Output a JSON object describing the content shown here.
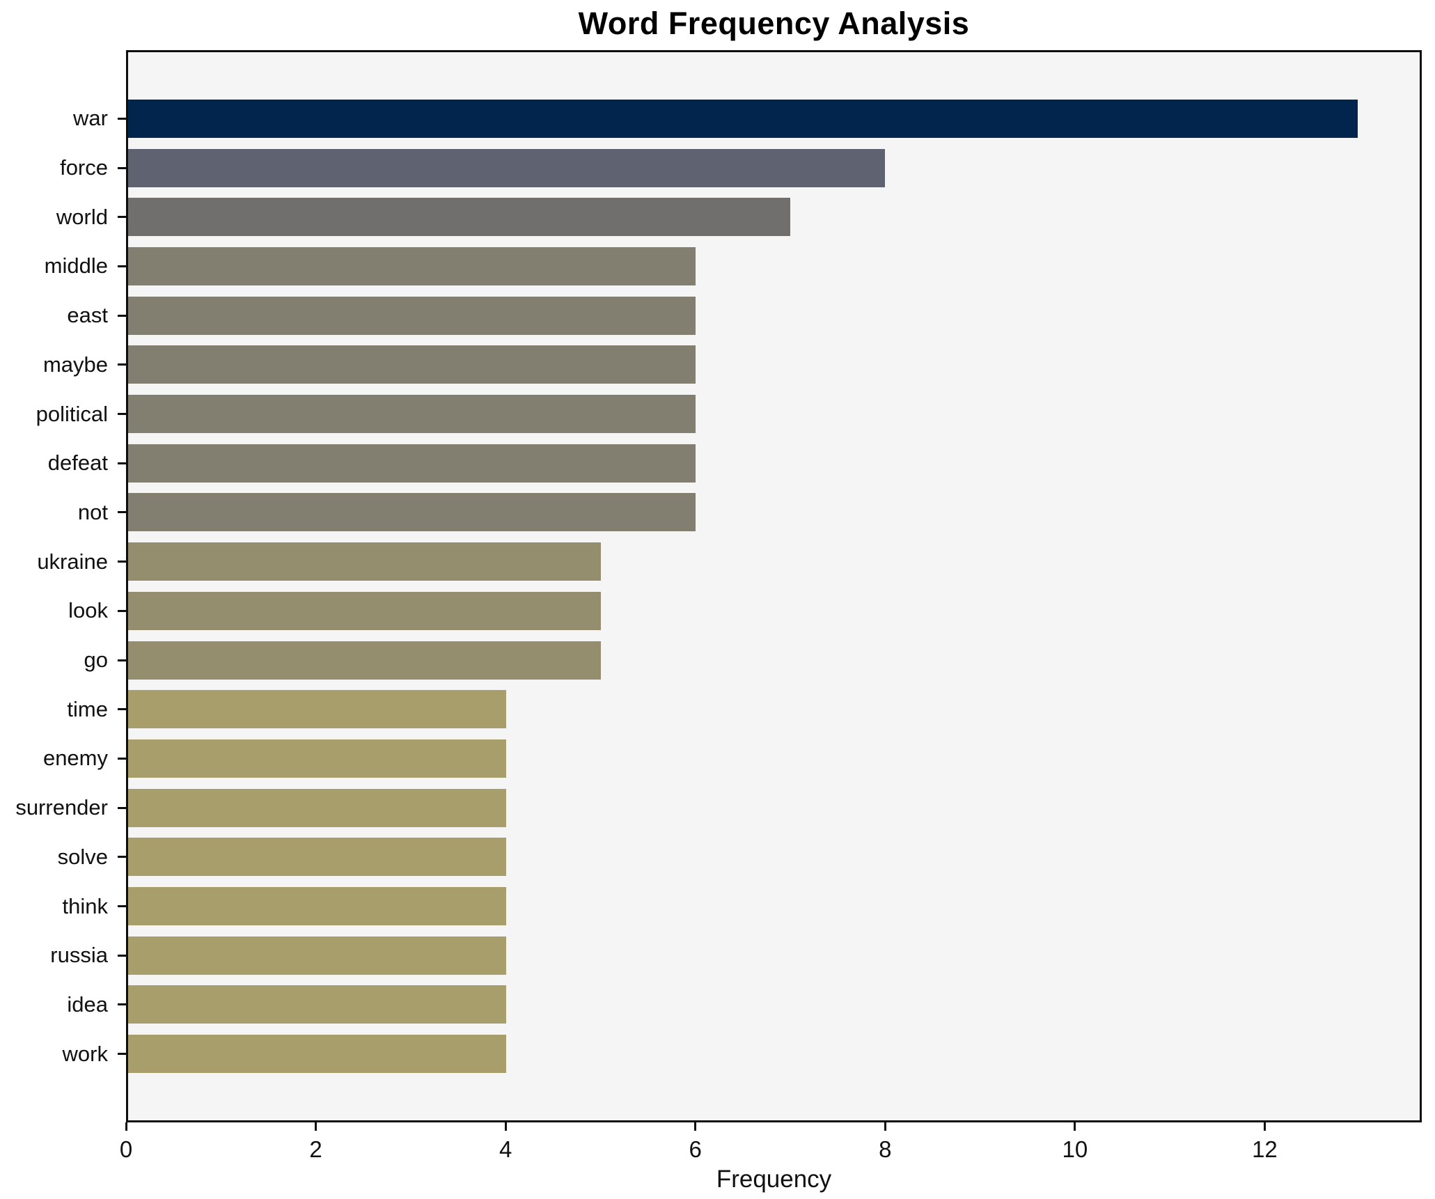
{
  "chart_data": {
    "type": "bar",
    "orientation": "horizontal",
    "title": "Word Frequency Analysis",
    "xlabel": "Frequency",
    "ylabel": "",
    "categories": [
      "war",
      "force",
      "world",
      "middle",
      "east",
      "maybe",
      "political",
      "defeat",
      "not",
      "ukraine",
      "look",
      "go",
      "time",
      "enemy",
      "surrender",
      "solve",
      "think",
      "russia",
      "idea",
      "work"
    ],
    "values": [
      13,
      8,
      7,
      6,
      6,
      6,
      6,
      6,
      6,
      5,
      5,
      5,
      4,
      4,
      4,
      4,
      4,
      4,
      4,
      4
    ],
    "bar_colors": [
      "#02254e",
      "#5e6271",
      "#706f6e",
      "#827f70",
      "#827f70",
      "#827f70",
      "#827f70",
      "#827f70",
      "#827f70",
      "#948e6f",
      "#948e6f",
      "#948e6f",
      "#a89e6c",
      "#a89e6c",
      "#a89e6c",
      "#a89e6c",
      "#a89e6c",
      "#a89e6c",
      "#a89e6c",
      "#a89e6c"
    ],
    "xlim": [
      0,
      13.655
    ],
    "xticks": [
      0,
      2,
      4,
      6,
      8,
      10,
      12
    ],
    "grid": false,
    "legend": "none",
    "plot_background": "#f5f5f6",
    "figure_background": "#ffffff",
    "spine_color": "#0e0e0e"
  }
}
